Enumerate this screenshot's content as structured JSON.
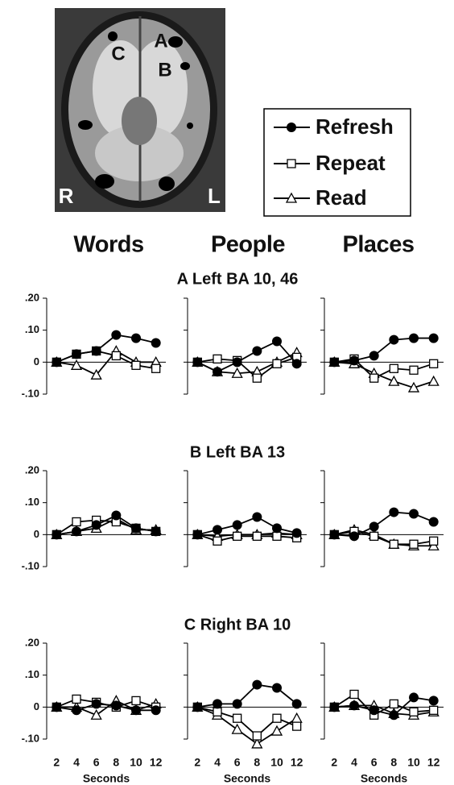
{
  "brain_labels": [
    "A",
    "B",
    "C",
    "R",
    "L"
  ],
  "chart_data": {
    "type": "line",
    "x": [
      2,
      4,
      6,
      8,
      10,
      12
    ],
    "xlim": [
      1,
      13
    ],
    "xticks": [
      2,
      4,
      6,
      8,
      10,
      12
    ],
    "xlabel": "Seconds",
    "ylim": [
      -0.1,
      0.2
    ],
    "yticks": [
      {
        "value": 0.2,
        "label": ".20"
      },
      {
        "value": 0.1,
        "label": ".10"
      },
      0,
      {
        "value": -0.1,
        "label": "-.10"
      }
    ],
    "series": [
      {
        "name": "Refresh",
        "marker": "circle",
        "color": "#000000"
      },
      {
        "name": "Repeat",
        "marker": "square",
        "color": "#000000"
      },
      {
        "name": "Read",
        "marker": "triangle",
        "color": "#000000"
      }
    ],
    "columns": [
      "Words",
      "People",
      "Places"
    ],
    "rows": [
      {
        "title": "A  Left BA 10, 46",
        "panels": [
          [
            [
              0,
              0.025,
              0.035,
              0.085,
              0.075,
              0.06
            ],
            [
              0,
              0.025,
              0.035,
              0.02,
              -0.01,
              -0.02
            ],
            [
              0,
              -0.01,
              -0.04,
              0.035,
              0,
              0
            ]
          ],
          [
            [
              0,
              -0.03,
              0,
              0.035,
              0.065,
              -0.005
            ],
            [
              0,
              0.01,
              0.005,
              -0.05,
              -0.005,
              0.015
            ],
            [
              0,
              -0.03,
              -0.035,
              -0.03,
              0,
              0.03
            ]
          ],
          [
            [
              0,
              0.005,
              0.02,
              0.07,
              0.075,
              0.075
            ],
            [
              0,
              0.01,
              -0.05,
              -0.02,
              -0.025,
              -0.005
            ],
            [
              0,
              -0.005,
              -0.035,
              -0.06,
              -0.08,
              -0.06
            ]
          ]
        ]
      },
      {
        "title": "B  Left BA 13",
        "panels": [
          [
            [
              0,
              0.01,
              0.03,
              0.06,
              0.02,
              0.01
            ],
            [
              0,
              0.04,
              0.045,
              0.04,
              0.02,
              0.01
            ],
            [
              0,
              0.01,
              0.02,
              0.05,
              0.015,
              0.015
            ]
          ],
          [
            [
              0,
              0.015,
              0.03,
              0.055,
              0.02,
              0.005
            ],
            [
              0,
              -0.02,
              -0.005,
              -0.005,
              -0.005,
              -0.01
            ],
            [
              0,
              -0.005,
              0,
              0,
              0.005,
              0
            ]
          ],
          [
            [
              0,
              -0.005,
              0.025,
              0.07,
              0.065,
              0.04
            ],
            [
              0,
              0.01,
              -0.005,
              -0.03,
              -0.03,
              -0.02
            ],
            [
              0,
              0.015,
              0,
              -0.03,
              -0.035,
              -0.035
            ]
          ]
        ]
      },
      {
        "title": "C  Right BA 10",
        "panels": [
          [
            [
              0,
              -0.01,
              0.01,
              0.005,
              -0.01,
              -0.01
            ],
            [
              0,
              0.025,
              0.015,
              0,
              0.02,
              0
            ],
            [
              0,
              0,
              -0.025,
              0.02,
              -0.01,
              0.01
            ]
          ],
          [
            [
              0,
              0.01,
              0.01,
              0.07,
              0.06,
              0.01
            ],
            [
              0,
              -0.015,
              -0.035,
              -0.09,
              -0.035,
              -0.06
            ],
            [
              0,
              -0.025,
              -0.07,
              -0.115,
              -0.075,
              -0.035
            ]
          ],
          [
            [
              0,
              0.005,
              -0.01,
              -0.025,
              0.03,
              0.02
            ],
            [
              0,
              0.04,
              -0.025,
              0.01,
              -0.015,
              -0.01
            ],
            [
              0,
              0.005,
              0.005,
              -0.02,
              -0.025,
              -0.015
            ]
          ]
        ]
      }
    ]
  }
}
